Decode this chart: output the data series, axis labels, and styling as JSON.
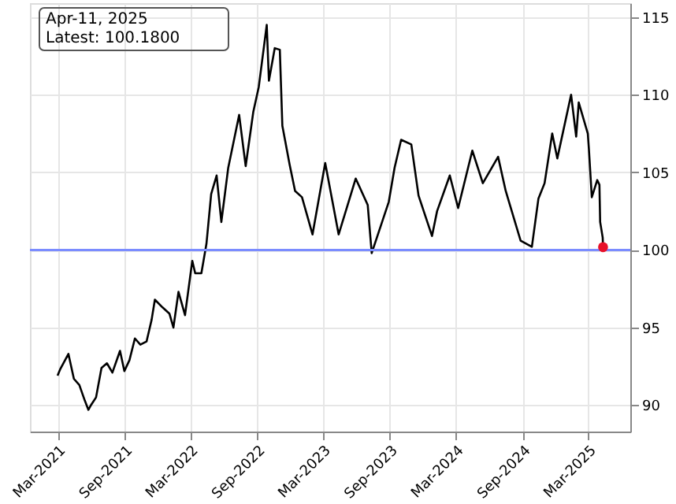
{
  "chart_data": {
    "type": "line",
    "annotations": [
      "Apr-11, 2025",
      "Latest: 100.1800"
    ],
    "series": [
      {
        "color": "#000000",
        "x": [
          "2021-03-01",
          "2021-03-08",
          "2021-03-31",
          "2021-04-15",
          "2021-04-30",
          "2021-05-15",
          "2021-05-25",
          "2021-06-01",
          "2021-06-15",
          "2021-06-30",
          "2021-07-15",
          "2021-07-30",
          "2021-08-20",
          "2021-09-01",
          "2021-09-15",
          "2021-09-30",
          "2021-10-15",
          "2021-11-01",
          "2021-11-15",
          "2021-11-24",
          "2021-12-15",
          "2022-01-03",
          "2022-01-14",
          "2022-01-28",
          "2022-02-15",
          "2022-03-07",
          "2022-03-15",
          "2022-04-01",
          "2022-04-15",
          "2022-04-28",
          "2022-05-13",
          "2022-05-26",
          "2022-06-14",
          "2022-07-14",
          "2022-08-01",
          "2022-08-22",
          "2022-09-06",
          "2022-09-28",
          "2022-10-04",
          "2022-10-20",
          "2022-11-03",
          "2022-11-10",
          "2022-11-30",
          "2022-12-15",
          "2023-01-03",
          "2023-02-01",
          "2023-03-08",
          "2023-04-14",
          "2023-05-31",
          "2023-07-03",
          "2023-07-14",
          "2023-08-30",
          "2023-09-15",
          "2023-10-03",
          "2023-10-31",
          "2023-11-20",
          "2023-12-27",
          "2024-01-10",
          "2024-02-14",
          "2024-03-08",
          "2024-04-16",
          "2024-05-15",
          "2024-06-26",
          "2024-07-17",
          "2024-08-27",
          "2024-09-27",
          "2024-10-15",
          "2024-11-01",
          "2024-11-22",
          "2024-12-06",
          "2025-01-13",
          "2025-01-27",
          "2025-02-03",
          "2025-02-28",
          "2025-03-03",
          "2025-03-11",
          "2025-03-26",
          "2025-04-01",
          "2025-04-03",
          "2025-04-10",
          "2025-04-11"
        ],
        "values": [
          91.9,
          92.3,
          93.3,
          91.7,
          91.3,
          90.3,
          89.7,
          90.0,
          90.5,
          92.4,
          92.7,
          92.1,
          93.5,
          92.2,
          92.9,
          94.3,
          93.9,
          94.1,
          95.5,
          96.8,
          96.3,
          95.9,
          95.0,
          97.3,
          95.8,
          99.3,
          98.5,
          98.5,
          100.4,
          103.6,
          104.8,
          101.8,
          105.3,
          108.7,
          105.4,
          108.9,
          110.5,
          114.5,
          110.9,
          113.0,
          112.9,
          108.0,
          105.5,
          103.8,
          103.4,
          101.0,
          105.6,
          101.0,
          104.6,
          102.9,
          99.8,
          103.1,
          105.3,
          107.1,
          106.8,
          103.5,
          100.9,
          102.5,
          104.8,
          102.7,
          106.4,
          104.3,
          106.0,
          103.8,
          100.6,
          100.2,
          103.3,
          104.3,
          107.5,
          105.9,
          110.0,
          107.3,
          109.5,
          107.5,
          106.5,
          103.4,
          104.5,
          104.2,
          101.8,
          100.8,
          100.18
        ]
      },
      {
        "type": "scatter",
        "color": "#e8102a",
        "x": [
          "2025-04-11"
        ],
        "values": [
          100.18
        ]
      }
    ],
    "xlim": [
      "2020-12-15",
      "2025-06-25"
    ],
    "xticks": [
      {
        "value": "2021-03-01",
        "label": "Mar-2021"
      },
      {
        "value": "2021-09-01",
        "label": "Sep-2021"
      },
      {
        "value": "2022-03-01",
        "label": "Mar-2022"
      },
      {
        "value": "2022-09-01",
        "label": "Sep-2022"
      },
      {
        "value": "2023-03-01",
        "label": "Mar-2023"
      },
      {
        "value": "2023-09-01",
        "label": "Sep-2023"
      },
      {
        "value": "2024-03-01",
        "label": "Mar-2024"
      },
      {
        "value": "2024-09-01",
        "label": "Sep-2024"
      },
      {
        "value": "2025-03-01",
        "label": "Mar-2025"
      }
    ],
    "ylim": [
      88.3,
      115.9
    ],
    "yticks": [
      90,
      95,
      100,
      105,
      110,
      115
    ],
    "ref_lines": [
      {
        "axis": "y",
        "value": 100,
        "color": "#7b8cff"
      }
    ],
    "grid": true
  }
}
